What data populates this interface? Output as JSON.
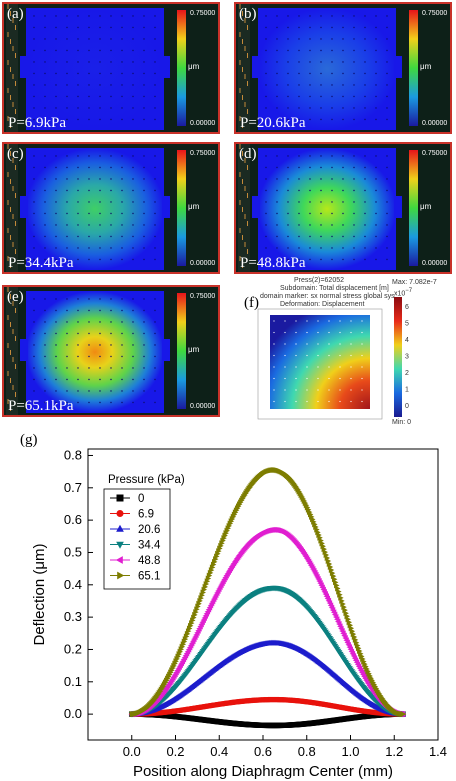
{
  "panels": [
    {
      "label": "(a)",
      "pressure": "P=6.9kPa",
      "cb_max": "0.75000",
      "cb_min": "0.00000",
      "cb_unit": "μm",
      "intensity": 0.06
    },
    {
      "label": "(b)",
      "pressure": "P=20.6kPa",
      "cb_max": "0.75000",
      "cb_min": "0.00000",
      "cb_unit": "μm",
      "intensity": 0.28
    },
    {
      "label": "(c)",
      "pressure": "P=34.4kPa",
      "cb_max": "0.75000",
      "cb_min": "0.00000",
      "cb_unit": "μm",
      "intensity": 0.52
    },
    {
      "label": "(d)",
      "pressure": "P=48.8kPa",
      "cb_max": "0.75000",
      "cb_min": "0.00000",
      "cb_unit": "μm",
      "intensity": 0.72
    },
    {
      "label": "(e)",
      "pressure": "P=65.1kPa",
      "cb_max": "0.75000",
      "cb_min": "0.00000",
      "cb_unit": "μm",
      "intensity": 1.0
    }
  ],
  "sim": {
    "label": "(f)",
    "line1": "Press(2)=62052",
    "line2": "Subdomain: Total displacement [m]",
    "line3": "domain marker: sx normal stress global sys.",
    "line4": "Deformation: Displacement",
    "max": "Max: 7.082e-7",
    "exp": "x10",
    "exp_sup": "−7",
    "min": "Min: 0",
    "ticks": [
      "6",
      "5",
      "4",
      "3",
      "2",
      "1",
      "0"
    ]
  },
  "chart_label": "(g)",
  "chart_data": {
    "type": "scatter",
    "xlabel": "Position along Diaphragm Center (mm)",
    "ylabel": "Deflection (μm)",
    "xlim": [
      -0.2,
      1.4
    ],
    "ylim": [
      -0.08,
      0.82
    ],
    "x_ticks": [
      "0.0",
      "0.2",
      "0.4",
      "0.6",
      "0.8",
      "1.0",
      "1.2",
      "1.4"
    ],
    "y_ticks": [
      "0.0",
      "0.1",
      "0.2",
      "0.3",
      "0.4",
      "0.5",
      "0.6",
      "0.7",
      "0.8"
    ],
    "legend_title": "Pressure (kPa)",
    "legend_position": "top-left",
    "x_range": [
      0.0,
      1.24
    ],
    "series": [
      {
        "name": "0",
        "color": "#000000",
        "marker": "square",
        "peak": -0.035
      },
      {
        "name": "6.9",
        "color": "#e8120c",
        "marker": "circle",
        "peak": 0.045
      },
      {
        "name": "20.6",
        "color": "#1c1ccc",
        "marker": "triangle-up",
        "peak": 0.22
      },
      {
        "name": "34.4",
        "color": "#0b8080",
        "marker": "triangle-down",
        "peak": 0.39
      },
      {
        "name": "48.8",
        "color": "#e01ed0",
        "marker": "triangle-left",
        "peak": 0.57
      },
      {
        "name": "65.1",
        "color": "#7d7d00",
        "marker": "triangle-right",
        "peak": 0.755
      }
    ],
    "peak_x": 0.65
  }
}
